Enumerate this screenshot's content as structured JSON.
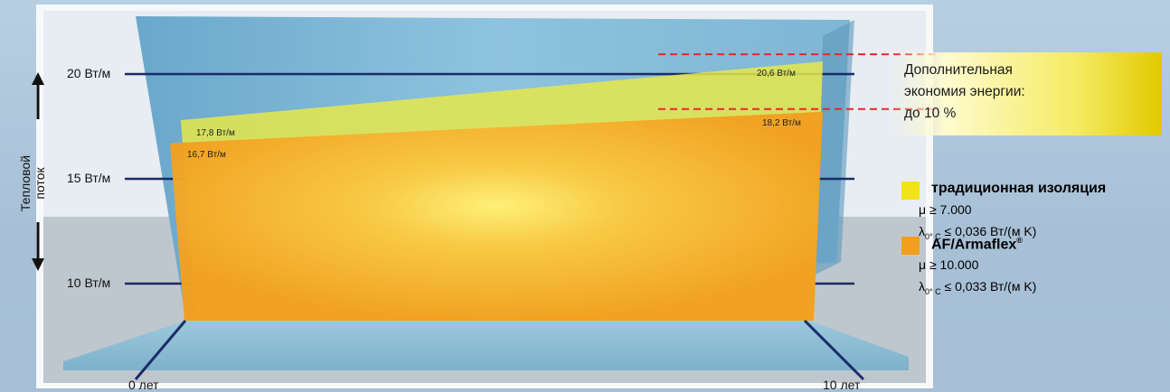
{
  "chart_data": {
    "type": "area",
    "x": [
      0,
      10
    ],
    "x_tick_labels": [
      "0 лет",
      "10 лет"
    ],
    "y_axis_title_line1": "Тепловой",
    "y_axis_title_line2": "поток",
    "y_ticks": [
      10,
      15,
      20
    ],
    "y_tick_labels": [
      "10 Вт/м",
      "15 Вт/м",
      "20 Вт/м"
    ],
    "ylim": [
      7,
      22
    ],
    "series": [
      {
        "name": "традиционная изоляция",
        "color": "#e6e84a",
        "values": [
          17.8,
          20.6
        ],
        "labels": [
          "17,8 Вт/м",
          "20,6 Вт/м"
        ]
      },
      {
        "name": "AF/Armaflex",
        "color": "#f3a420",
        "values": [
          16.7,
          18.2
        ],
        "labels": [
          "16,7 Вт/м",
          "18,2 Вт/м"
        ]
      }
    ],
    "annotation": {
      "line1": "Дополнительная",
      "line2": "экономия энергии:",
      "line3": "до 10 %"
    },
    "legend": [
      {
        "name": "традиционная изоляция",
        "sup": "",
        "color": "#f2e21a",
        "prop1": "μ ≥ 7.000",
        "lambda_prefix": "λ",
        "lambda_sub": "0° C",
        "prop2": " ≤ 0,036 Вт/(м K)"
      },
      {
        "name": "AF/Armaflex",
        "sup": "®",
        "color": "#f29f1d",
        "prop1": "μ ≥ 10.000",
        "lambda_prefix": "λ",
        "lambda_sub": "0° C",
        "prop2": " ≤ 0,033 Вт/(м K)"
      }
    ]
  }
}
